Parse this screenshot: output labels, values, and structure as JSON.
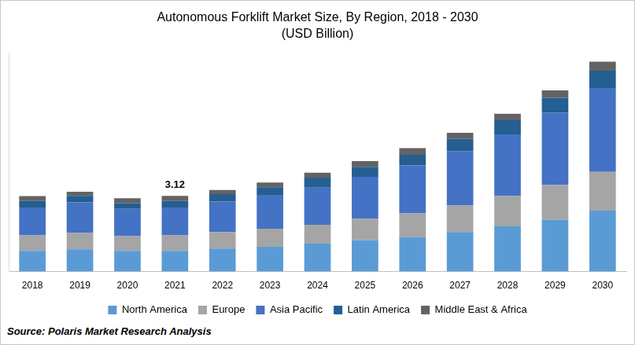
{
  "chart_data": {
    "type": "bar",
    "title": "Autonomous Forklift Market Size, By Region, 2018 - 2030",
    "subtitle": "(USD Billion)",
    "source": "Source: Polaris Market Research Analysis",
    "categories": [
      "2018",
      "2019",
      "2020",
      "2021",
      "2022",
      "2023",
      "2024",
      "2025",
      "2026",
      "2027",
      "2028",
      "2029",
      "2030"
    ],
    "series": [
      {
        "name": "North America",
        "color": "#5b9bd5",
        "values": [
          0.85,
          0.92,
          0.85,
          0.85,
          0.95,
          1.02,
          1.15,
          1.29,
          1.42,
          1.63,
          1.86,
          2.14,
          2.51
        ]
      },
      {
        "name": "Europe",
        "color": "#a5a5a5",
        "values": [
          0.64,
          0.68,
          0.61,
          0.64,
          0.68,
          0.75,
          0.78,
          0.88,
          0.98,
          1.09,
          1.25,
          1.42,
          1.59
        ]
      },
      {
        "name": "Asia Pacific",
        "color": "#4472c4",
        "values": [
          1.15,
          1.25,
          1.12,
          1.15,
          1.25,
          1.39,
          1.53,
          1.73,
          1.97,
          2.24,
          2.54,
          2.98,
          3.46
        ]
      },
      {
        "name": "Latin America",
        "color": "#255e91",
        "values": [
          0.27,
          0.27,
          0.24,
          0.27,
          0.31,
          0.31,
          0.41,
          0.41,
          0.44,
          0.51,
          0.58,
          0.61,
          0.71
        ]
      },
      {
        "name": "Middle East & Africa",
        "color": "#636363",
        "values": [
          0.2,
          0.17,
          0.2,
          0.21,
          0.17,
          0.2,
          0.2,
          0.24,
          0.27,
          0.24,
          0.27,
          0.31,
          0.37
        ]
      }
    ],
    "annotations": [
      {
        "x": "2021",
        "y": 3.12,
        "text": "3.12"
      }
    ],
    "ylim": [
      0,
      9
    ],
    "stacked": true,
    "grid": false,
    "legend": "bottom",
    "tick_labels": "x"
  }
}
